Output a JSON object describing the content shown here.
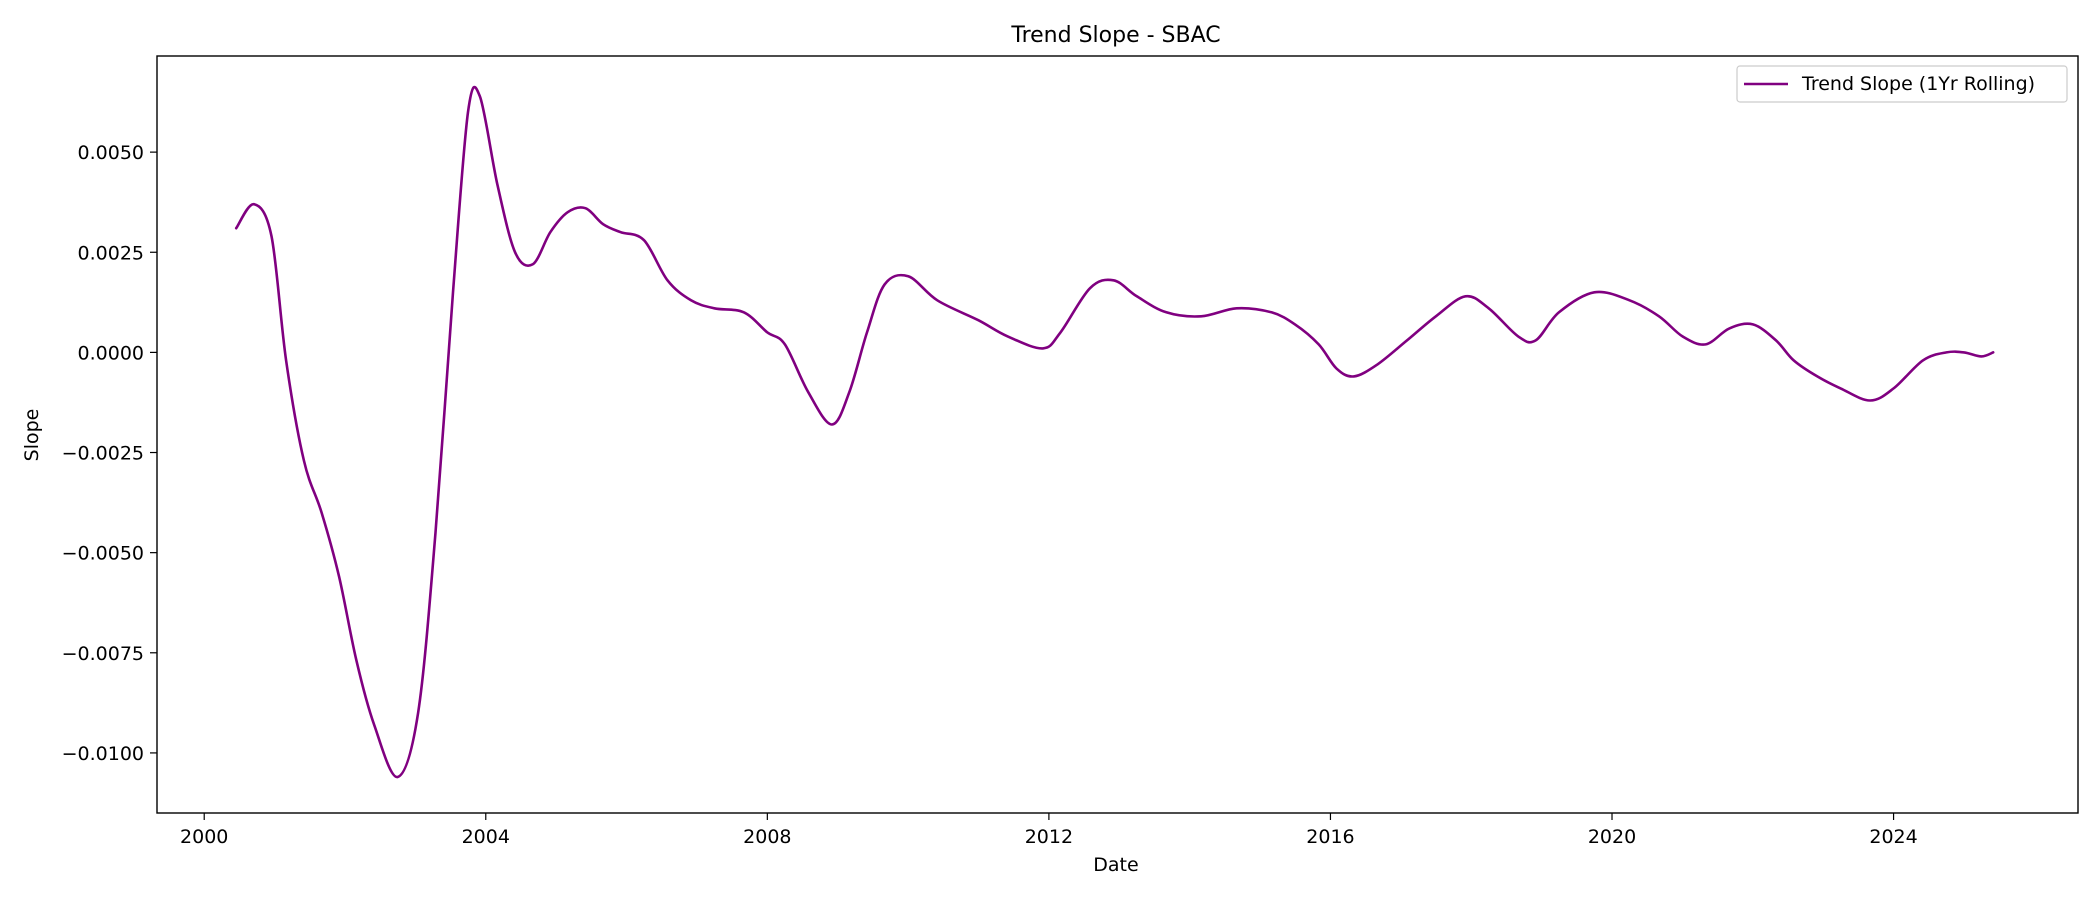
{
  "chart_data": {
    "type": "line",
    "title": "Trend Slope - SBAC",
    "xlabel": "Date",
    "ylabel": "Slope",
    "xlim": [
      "1999-05-01",
      "2026-08-15"
    ],
    "ylim": [
      -0.0115,
      0.0074
    ],
    "x_ticks": [
      {
        "date": "2000-01-01",
        "label": "2000"
      },
      {
        "date": "2004-01-01",
        "label": "2004"
      },
      {
        "date": "2008-01-01",
        "label": "2008"
      },
      {
        "date": "2012-01-01",
        "label": "2012"
      },
      {
        "date": "2016-01-01",
        "label": "2016"
      },
      {
        "date": "2020-01-01",
        "label": "2020"
      },
      {
        "date": "2024-01-01",
        "label": "2024"
      }
    ],
    "y_ticks": [
      {
        "value": 0.005,
        "label": "0.0050"
      },
      {
        "value": 0.0025,
        "label": "0.0025"
      },
      {
        "value": 0.0,
        "label": "0.0000"
      },
      {
        "value": -0.0025,
        "label": "−0.0025"
      },
      {
        "value": -0.005,
        "label": "−0.0050"
      },
      {
        "value": -0.0075,
        "label": "−0.0075"
      },
      {
        "value": -0.01,
        "label": "−0.0100"
      }
    ],
    "grid": false,
    "legend_position": "top-right",
    "series": [
      {
        "name": "Trend Slope (1Yr Rolling)",
        "color": "#800080",
        "x": [
          "2000-06-15",
          "2000-09-15",
          "2000-12-15",
          "2001-03-01",
          "2001-06-01",
          "2001-09-01",
          "2001-12-01",
          "2002-03-01",
          "2002-06-01",
          "2002-10-01",
          "2003-01-15",
          "2003-04-15",
          "2003-07-15",
          "2003-10-01",
          "2003-12-01",
          "2004-03-01",
          "2004-06-01",
          "2004-09-01",
          "2004-12-01",
          "2005-03-01",
          "2005-06-01",
          "2005-09-01",
          "2005-12-01",
          "2006-04-01",
          "2006-08-01",
          "2006-12-01",
          "2007-04-01",
          "2007-09-01",
          "2008-01-01",
          "2008-04-01",
          "2008-08-01",
          "2008-12-01",
          "2009-03-01",
          "2009-06-01",
          "2009-09-01",
          "2010-01-01",
          "2010-06-01",
          "2011-01-01",
          "2011-06-01",
          "2011-12-01",
          "2012-03-01",
          "2012-08-01",
          "2012-12-01",
          "2013-04-01",
          "2013-09-01",
          "2014-03-01",
          "2014-09-01",
          "2015-03-01",
          "2015-07-01",
          "2015-11-01",
          "2016-02-01",
          "2016-05-01",
          "2016-09-01",
          "2017-02-01",
          "2017-07-01",
          "2017-12-01",
          "2018-04-01",
          "2018-09-01",
          "2018-12-01",
          "2019-04-01",
          "2019-10-01",
          "2020-04-01",
          "2020-09-01",
          "2021-01-01",
          "2021-05-01",
          "2021-09-01",
          "2022-01-01",
          "2022-05-01",
          "2022-08-01",
          "2022-12-01",
          "2023-04-01",
          "2023-09-01",
          "2024-01-01",
          "2024-06-01",
          "2024-10-01",
          "2025-01-01",
          "2025-04-01",
          "2025-06-01"
        ],
        "y": [
          0.0031,
          0.0037,
          0.0029,
          -0.0002,
          -0.0027,
          -0.004,
          -0.0056,
          -0.0077,
          -0.0093,
          -0.0106,
          -0.009,
          -0.0045,
          0.0015,
          0.006,
          0.0064,
          0.0042,
          0.0025,
          0.0022,
          0.003,
          0.0035,
          0.0036,
          0.0032,
          0.003,
          0.0028,
          0.0018,
          0.0013,
          0.0011,
          0.001,
          0.0005,
          0.0002,
          -0.001,
          -0.0018,
          -0.001,
          0.0005,
          0.0017,
          0.0019,
          0.0013,
          0.0008,
          0.0004,
          0.0001,
          0.0005,
          0.0016,
          0.0018,
          0.0014,
          0.001,
          0.0009,
          0.0011,
          0.001,
          0.0007,
          0.0002,
          -0.0004,
          -0.0006,
          -0.0003,
          0.0003,
          0.0009,
          0.0014,
          0.0011,
          0.0004,
          0.0003,
          0.001,
          0.0015,
          0.0013,
          0.0009,
          0.0004,
          0.0002,
          0.0006,
          0.0007,
          0.0003,
          -0.0002,
          -0.0006,
          -0.0009,
          -0.0012,
          -0.0009,
          -0.0002,
          0.0,
          0.0,
          -0.0001,
          0.0
        ]
      }
    ]
  }
}
